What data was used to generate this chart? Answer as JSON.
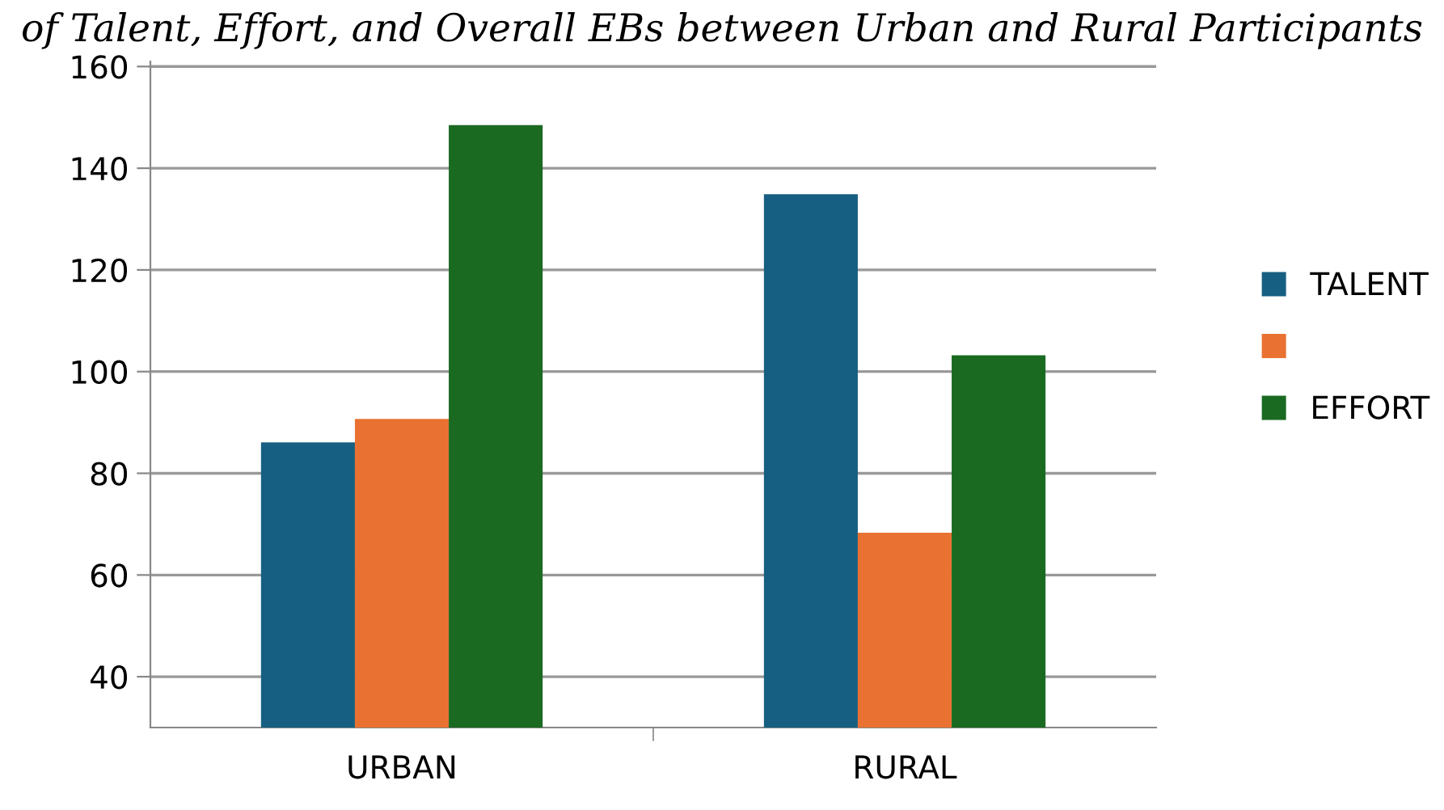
{
  "chart_data": {
    "type": "bar",
    "title": "of Talent, Effort, and Overall EBs between Urban and Rural Participants",
    "categories": [
      "URBAN",
      "RURAL"
    ],
    "series": [
      {
        "name": "TALENT",
        "color": "#175f82",
        "values": [
          86.1,
          134.9
        ]
      },
      {
        "name": null,
        "color": "#e97132",
        "values": [
          90.7,
          68.3
        ]
      },
      {
        "name": "EFFORT",
        "color": "#1a6a22",
        "values": [
          148.5,
          103.2
        ]
      }
    ],
    "ylim": [
      30,
      161
    ],
    "yticks": [
      40,
      60,
      80,
      100,
      120,
      140,
      160
    ],
    "grid": "y",
    "legend": "right"
  }
}
